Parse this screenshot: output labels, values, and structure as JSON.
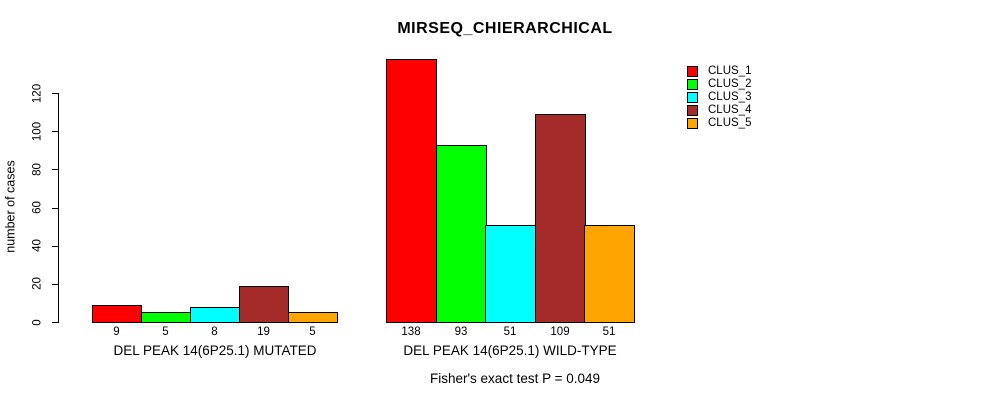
{
  "chart_data": {
    "type": "bar",
    "title": "MIRSEQ_CHIERARCHICAL",
    "ylabel": "number of cases",
    "xlabel": "",
    "axis_range": [
      0,
      120
    ],
    "yticks": [
      0,
      20,
      40,
      60,
      80,
      100,
      120
    ],
    "grid": false,
    "categories": [
      "DEL PEAK 14(6P25.1) MUTATED",
      "DEL PEAK 14(6P25.1) WILD-TYPE"
    ],
    "series": [
      {
        "name": "CLUS_1",
        "color": "#FF0000",
        "values": [
          9,
          138
        ]
      },
      {
        "name": "CLUS_2",
        "color": "#00FF00",
        "values": [
          5,
          93
        ]
      },
      {
        "name": "CLUS_3",
        "color": "#00FFFF",
        "values": [
          8,
          51
        ]
      },
      {
        "name": "CLUS_4",
        "color": "#A52A2A",
        "values": [
          19,
          109
        ]
      },
      {
        "name": "CLUS_5",
        "color": "#FFA500",
        "values": [
          5,
          51
        ]
      }
    ],
    "bar_value_labels": [
      [
        "9",
        "5",
        "8",
        "19",
        "5"
      ],
      [
        "138",
        "93",
        "51",
        "109",
        "51"
      ]
    ],
    "legend": {
      "position": "top-right",
      "entries": [
        "CLUS_1",
        "CLUS_2",
        "CLUS_3",
        "CLUS_4",
        "CLUS_5"
      ]
    },
    "footnote": "Fisher's exact test P = 0.049",
    "axis_color": "#000000",
    "background_color": "#FFFFFF"
  }
}
